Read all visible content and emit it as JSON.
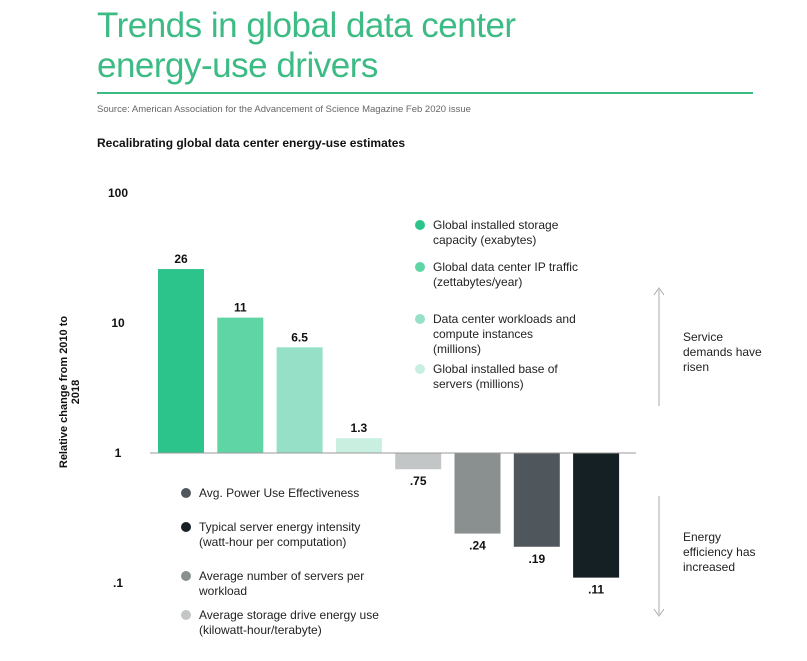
{
  "header": {
    "title": "Trends in global data center energy-use drivers",
    "source": "Source: American Association for the Advancement of Science Magazine Feb 2020 issue"
  },
  "chart_data": {
    "type": "bar",
    "title": "Recalibrating global data center energy-use estimates",
    "ylabel": "Relative change from 2010 to 2018",
    "yscale": "log",
    "ylim": [
      0.1,
      100
    ],
    "yticks": [
      {
        "v": 100,
        "label": "100"
      },
      {
        "v": 10,
        "label": "10"
      },
      {
        "v": 1,
        "label": "1"
      },
      {
        "v": 0.1,
        "label": ".1"
      }
    ],
    "grid": false,
    "bars": [
      {
        "name": "Global installed storage capacity (exabytes)",
        "value": 26,
        "label": "26",
        "color": "#2cc48a"
      },
      {
        "name": "Global data center IP traffic (zettabytes/year)",
        "value": 11,
        "label": "11",
        "color": "#5fd4a5"
      },
      {
        "name": "Data center workloads and compute instances (millions)",
        "value": 6.5,
        "label": "6.5",
        "color": "#95e0c6"
      },
      {
        "name": "Global installed base of servers (millions)",
        "value": 1.3,
        "label": "1.3",
        "color": "#c9efe1"
      },
      {
        "name": "Average storage drive energy use (kilowatt-hour/terabyte)",
        "value": 0.75,
        "label": ".75",
        "color": "#c3c6c7"
      },
      {
        "name": "Average number of servers per workload",
        "value": 0.24,
        "label": ".24",
        "color": "#8a9090"
      },
      {
        "name": "Avg. Power Use Effectiveness",
        "value": 0.19,
        "label": ".19",
        "color": "#50575c"
      },
      {
        "name": "Typical server energy intensity (watt-hour per computation)",
        "value": 0.11,
        "label": ".11",
        "color": "#152025"
      }
    ],
    "legend_top": [
      {
        "label": "Global installed storage capacity (exabytes)",
        "color": "#2cc48a"
      },
      {
        "label": "Global data center IP traffic (zettabytes/year)",
        "color": "#5fd4a5"
      },
      {
        "label": "Data center workloads and compute instances (millions)",
        "color": "#95e0c6"
      },
      {
        "label": "Global installed base of servers (millions)",
        "color": "#c9efe1"
      }
    ],
    "legend_bottom": [
      {
        "label": "Avg. Power Use Effectiveness",
        "color": "#50575c"
      },
      {
        "label": "Typical server energy intensity (watt-hour per computation)",
        "color": "#152025"
      },
      {
        "label": "Average number of servers per workload",
        "color": "#8a9090"
      },
      {
        "label": "Average storage drive energy use (kilowatt-hour/terabyte)",
        "color": "#c3c6c7"
      }
    ],
    "annotations": {
      "up": "Service demands have risen",
      "down": "Energy efficiency has increased"
    }
  }
}
